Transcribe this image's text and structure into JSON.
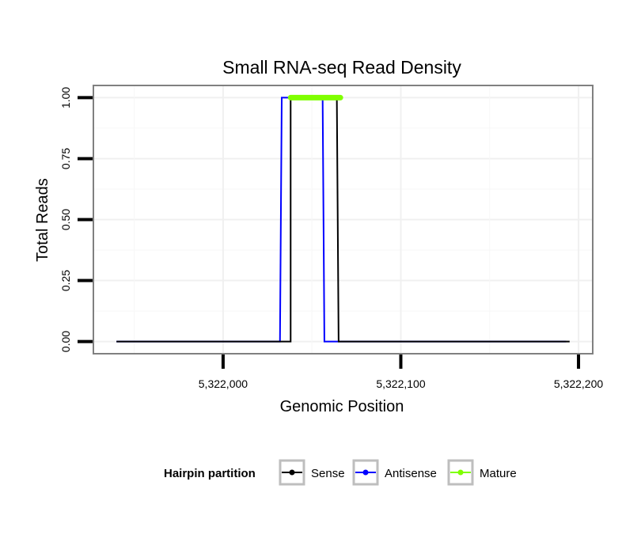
{
  "chart_data": {
    "type": "line",
    "title": "Small RNA-seq Read Density",
    "xlabel": "Genomic Position",
    "ylabel": "Total Reads",
    "xlim": [
      5321927,
      5322208
    ],
    "ylim": [
      -0.05,
      1.05
    ],
    "x_ticks": [
      5322000,
      5322100,
      5322200
    ],
    "x_tick_labels": [
      "5,322,000",
      "5,322,100",
      "5,322,200"
    ],
    "y_ticks": [
      0.0,
      0.25,
      0.5,
      0.75,
      1.0
    ],
    "y_tick_labels": [
      "0.00",
      "0.25",
      "0.50",
      "0.75",
      "1.00"
    ],
    "grid": true,
    "legend": {
      "title": "Hairpin partition",
      "position": "bottom",
      "entries": [
        {
          "label": "Sense",
          "color": "#000000"
        },
        {
          "label": "Antisense",
          "color": "#0000ff"
        },
        {
          "label": "Mature",
          "color": "#7fff00"
        }
      ]
    },
    "series": [
      {
        "name": "Antisense",
        "color": "#0000ff",
        "x": [
          5321940,
          5322032,
          5322033,
          5322056,
          5322057,
          5322193
        ],
        "y": [
          0,
          0,
          1,
          1,
          0,
          0
        ]
      },
      {
        "name": "Sense",
        "color": "#000000",
        "x": [
          5321940,
          5322038,
          5322038,
          5322064,
          5322065,
          5322195
        ],
        "y": [
          0,
          0,
          1,
          1,
          0,
          0
        ]
      },
      {
        "name": "Mature",
        "color": "#7fff00",
        "x": [
          5322038,
          5322066
        ],
        "y": [
          1,
          1
        ]
      }
    ]
  }
}
